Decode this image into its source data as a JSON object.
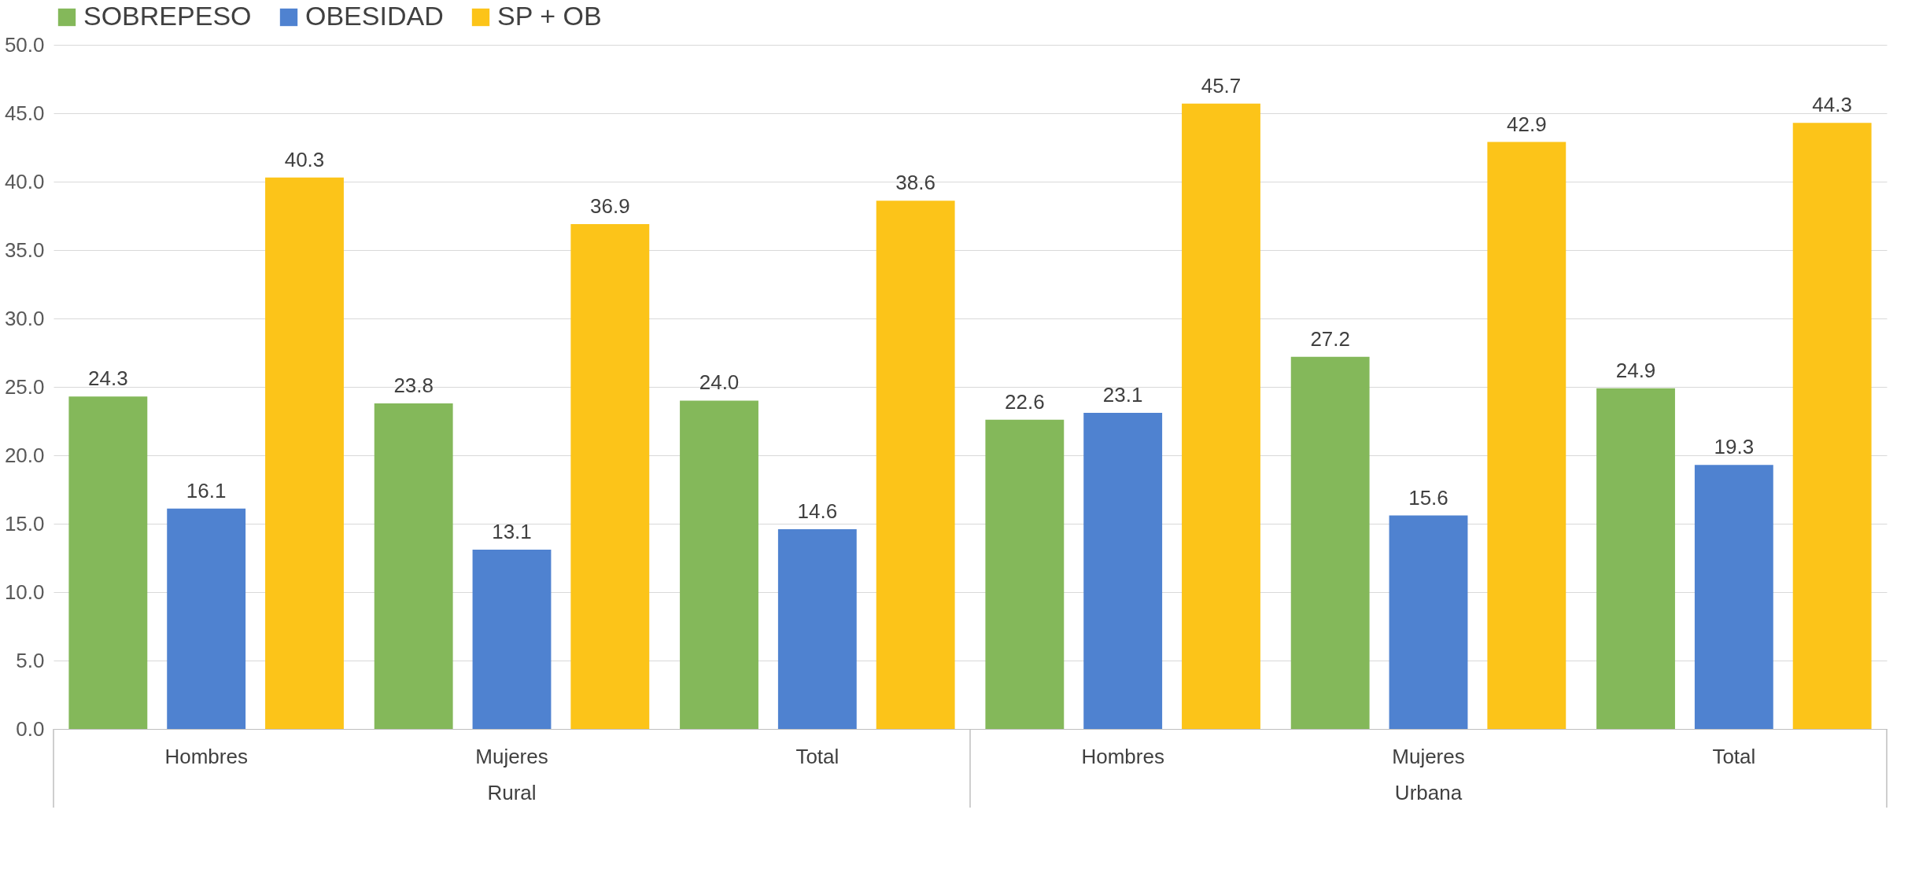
{
  "chart_data": {
    "type": "bar",
    "categories": [
      "Hombres",
      "Mujeres",
      "Total",
      "Hombres",
      "Mujeres",
      "Total"
    ],
    "annotations": [
      "Rural",
      "Urbana"
    ],
    "series": [
      {
        "name": "SOBREPESO",
        "color": "#84b85a",
        "values": [
          24.3,
          23.8,
          24.0,
          22.6,
          27.2,
          24.9
        ],
        "value_labels": [
          "24.3",
          "23.8",
          "24.0",
          "22.6",
          "27.2",
          "24.9"
        ]
      },
      {
        "name": "OBESIDAD",
        "color": "#4f82d0",
        "values": [
          16.1,
          13.1,
          14.6,
          23.1,
          15.6,
          19.3
        ],
        "value_labels": [
          "16.1",
          "13.1",
          "14.6",
          "23.1",
          "15.6",
          "19.3"
        ]
      },
      {
        "name": "SP + OB",
        "color": "#fcc419",
        "values": [
          40.3,
          36.9,
          38.6,
          45.7,
          42.9,
          44.3
        ],
        "value_labels": [
          "40.3",
          "36.9",
          "38.6",
          "45.7",
          "42.9",
          "44.3"
        ]
      }
    ],
    "ylim": [
      0,
      50
    ],
    "yticks": [
      {
        "value": 0,
        "label": "0.0"
      },
      {
        "value": 5,
        "label": "5.0"
      },
      {
        "value": 10,
        "label": "10.0"
      },
      {
        "value": 15,
        "label": "15.0"
      },
      {
        "value": 20,
        "label": "20.0"
      },
      {
        "value": 25,
        "label": "25.0"
      },
      {
        "value": 30,
        "label": "30.0"
      },
      {
        "value": 35,
        "label": "35.0"
      },
      {
        "value": 40,
        "label": "40.0"
      },
      {
        "value": 45,
        "label": "45.0"
      },
      {
        "value": 50,
        "label": "50.0"
      }
    ],
    "grid": "y",
    "legend": "top"
  }
}
